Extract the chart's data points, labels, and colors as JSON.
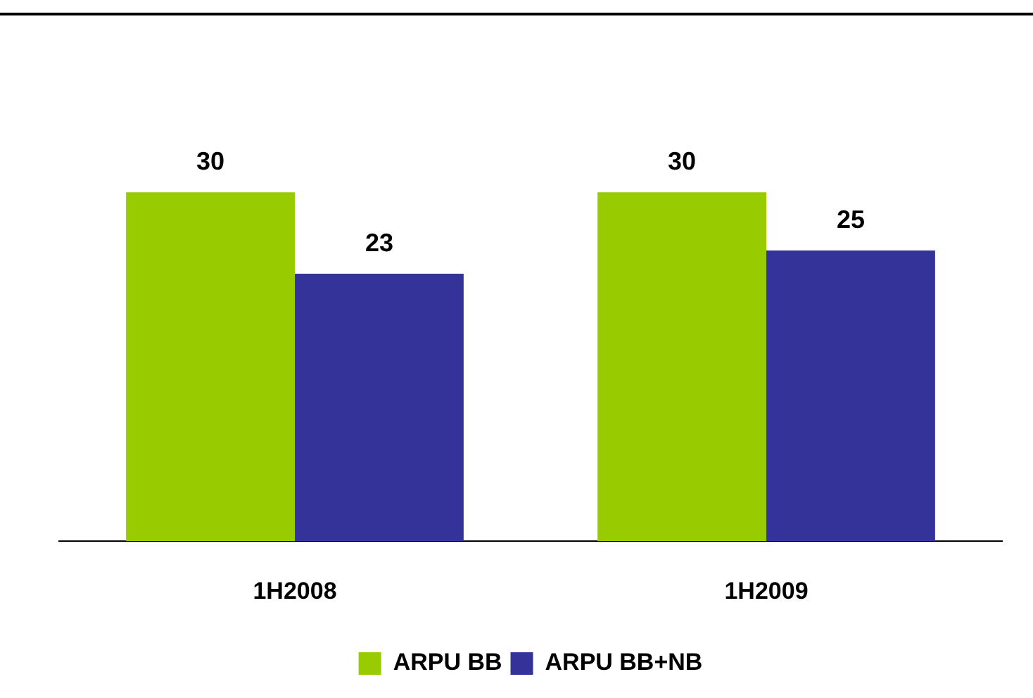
{
  "chart_data": {
    "type": "bar",
    "categories": [
      "1H2008",
      "1H2009"
    ],
    "series": [
      {
        "name": "ARPU BB",
        "color": "#99cc00",
        "values": [
          30,
          30
        ]
      },
      {
        "name": "ARPU BB+NB",
        "color": "#333399",
        "values": [
          23,
          25
        ]
      }
    ],
    "data_labels": true,
    "legend": "bottom",
    "grid": false
  }
}
